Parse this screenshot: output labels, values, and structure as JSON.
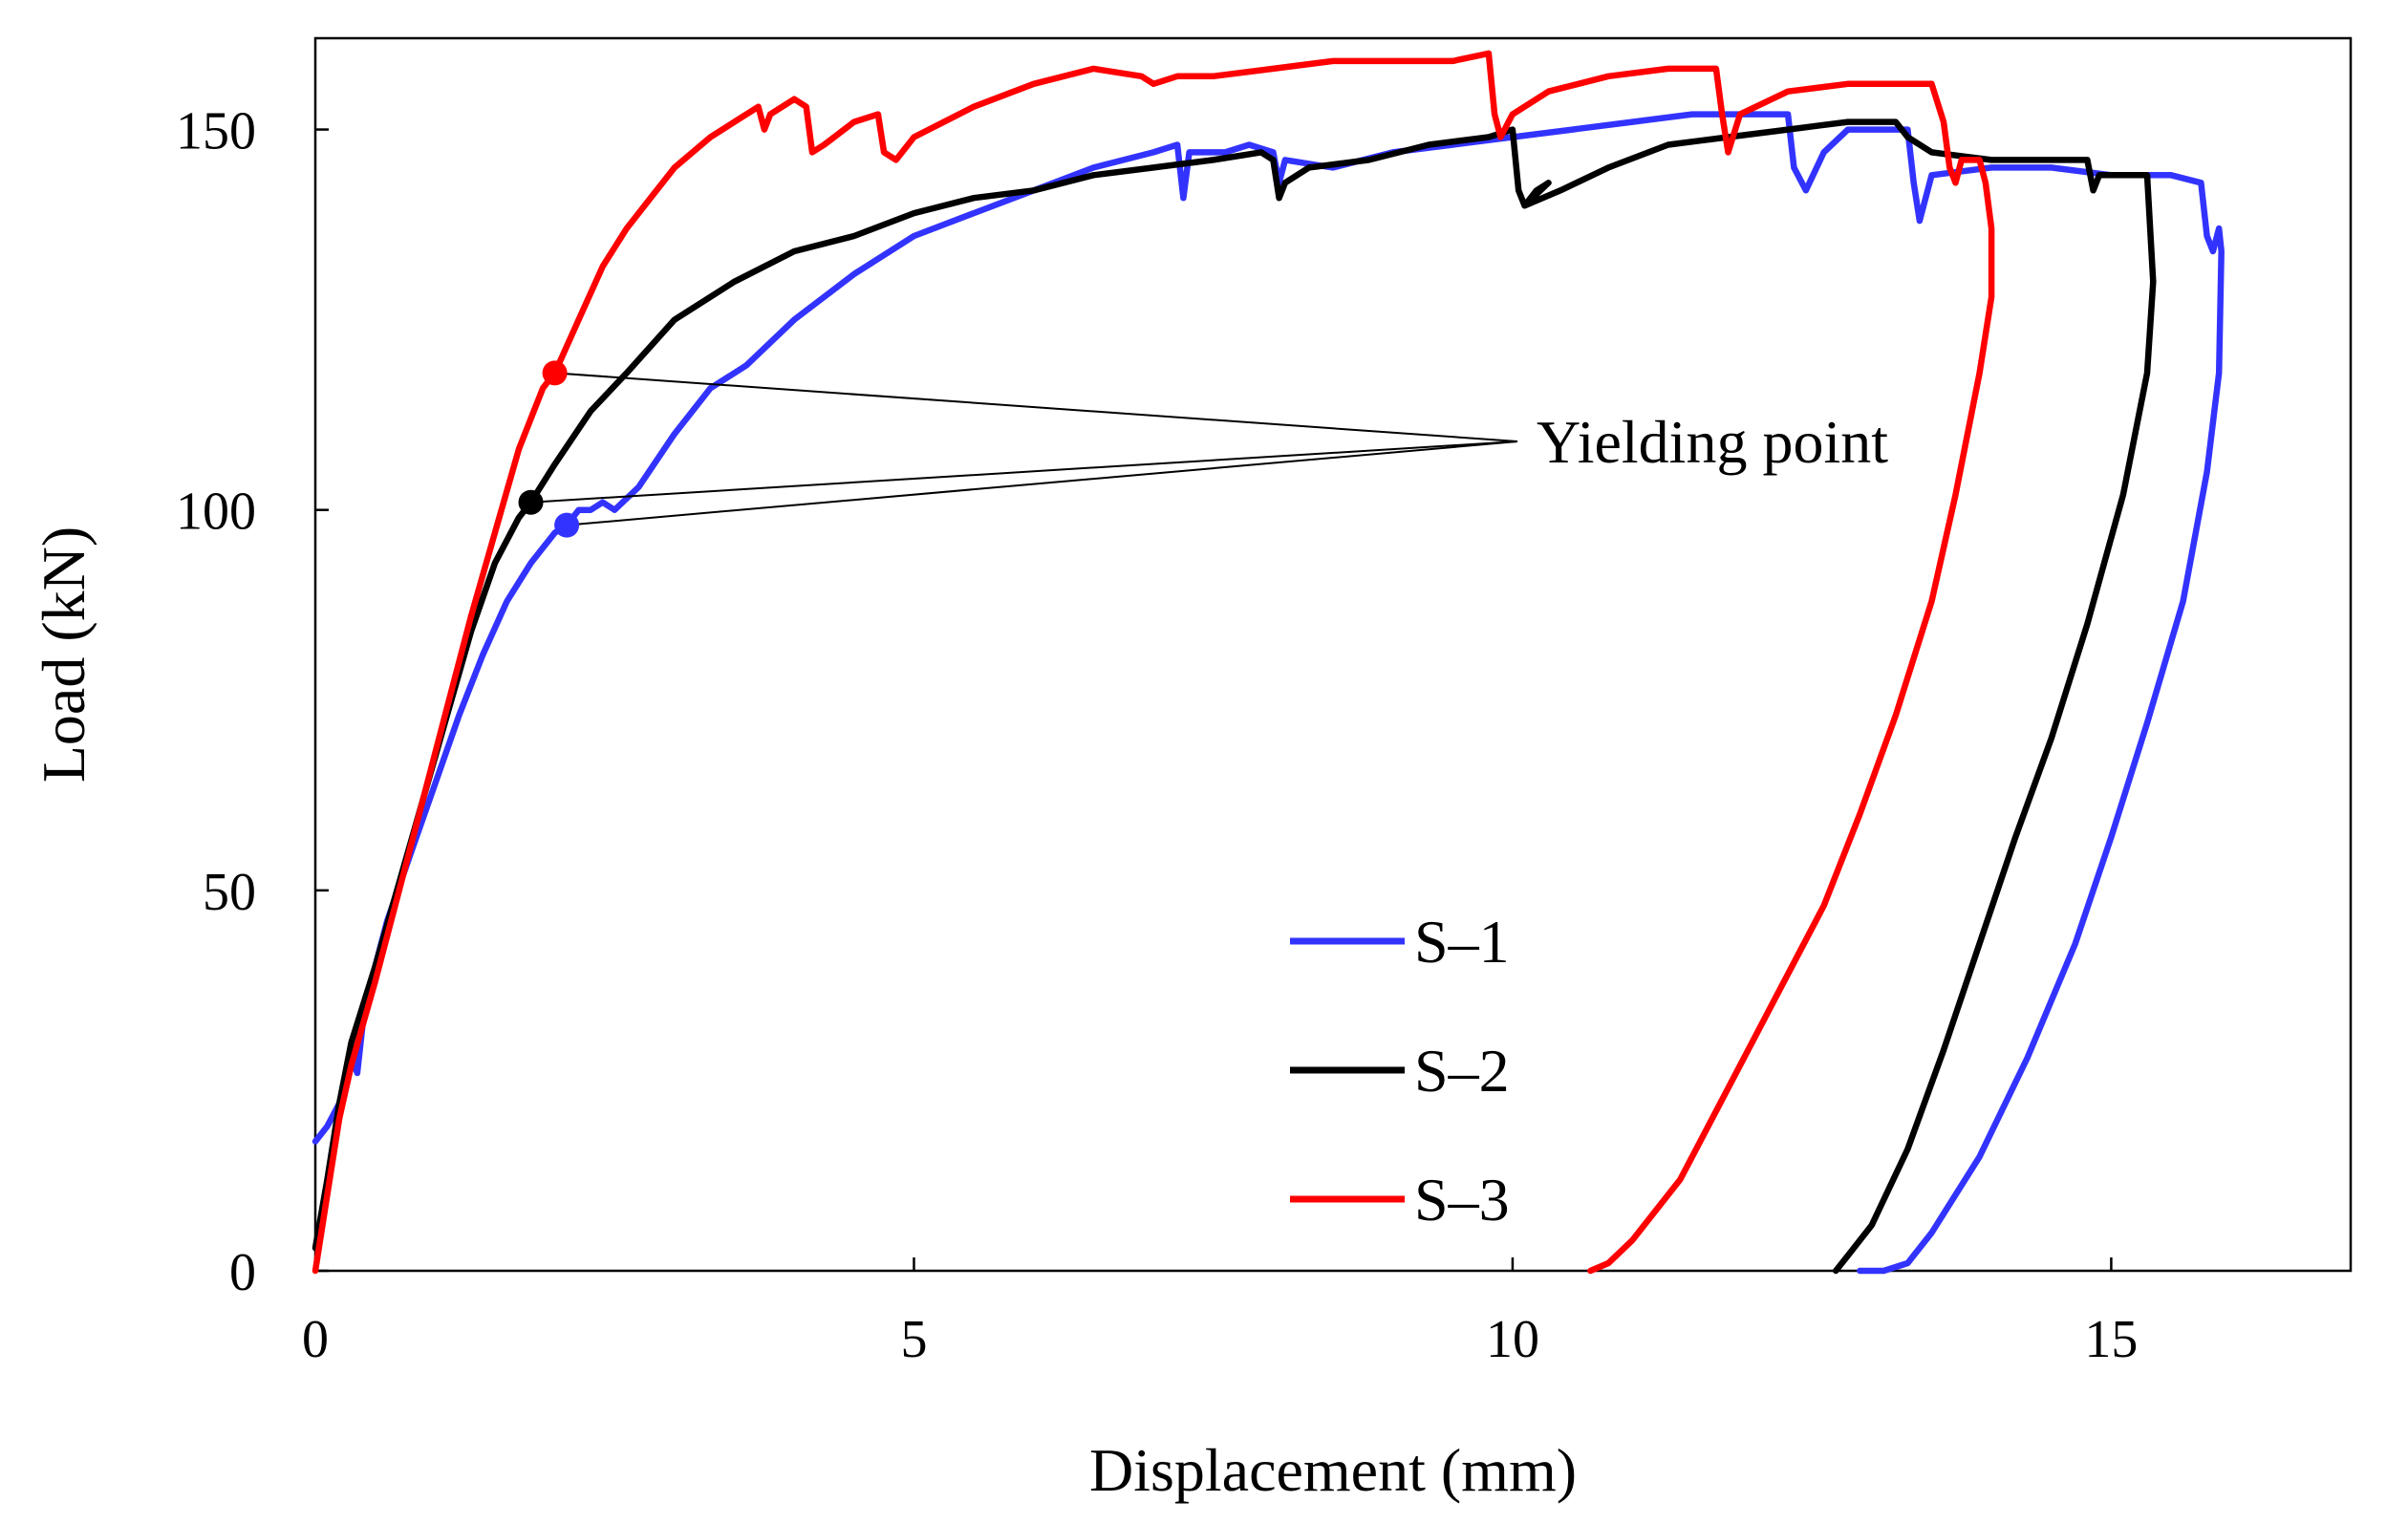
{
  "chart_data": {
    "type": "line",
    "title": "",
    "xlabel": "Displacement (mm)",
    "ylabel": "Load (kN)",
    "xlim": [
      0,
      17
    ],
    "ylim": [
      0,
      162
    ],
    "xticks": [
      0,
      5,
      10,
      15
    ],
    "yticks": [
      0,
      50,
      100,
      150
    ],
    "grid": false,
    "legend_position": "bottom-right",
    "annotation": {
      "text": "Yielding point",
      "anchor": [
        10.2,
        109
      ],
      "targets": [
        [
          2.0,
          118
        ],
        [
          1.8,
          101
        ],
        [
          2.1,
          98
        ]
      ]
    },
    "series": [
      {
        "name": "S–1",
        "color": "#3333ff",
        "yield_point": [
          2.1,
          98
        ],
        "points": [
          [
            0,
            17
          ],
          [
            0.1,
            19
          ],
          [
            0.2,
            22
          ],
          [
            0.3,
            28
          ],
          [
            0.35,
            26
          ],
          [
            0.4,
            33
          ],
          [
            0.5,
            40
          ],
          [
            0.6,
            46
          ],
          [
            0.8,
            55
          ],
          [
            1.0,
            64
          ],
          [
            1.2,
            73
          ],
          [
            1.4,
            81
          ],
          [
            1.6,
            88
          ],
          [
            1.8,
            93
          ],
          [
            2.0,
            97
          ],
          [
            2.1,
            98
          ],
          [
            2.2,
            100
          ],
          [
            2.3,
            100
          ],
          [
            2.4,
            101
          ],
          [
            2.5,
            100
          ],
          [
            2.7,
            103
          ],
          [
            3.0,
            110
          ],
          [
            3.3,
            116
          ],
          [
            3.6,
            119
          ],
          [
            4.0,
            125
          ],
          [
            4.5,
            131
          ],
          [
            5.0,
            136
          ],
          [
            5.5,
            139
          ],
          [
            6.0,
            142
          ],
          [
            6.5,
            145
          ],
          [
            7.0,
            147
          ],
          [
            7.2,
            148
          ],
          [
            7.25,
            141
          ],
          [
            7.3,
            147
          ],
          [
            7.6,
            147
          ],
          [
            7.8,
            148
          ],
          [
            8.0,
            147
          ],
          [
            8.05,
            143
          ],
          [
            8.1,
            146
          ],
          [
            8.5,
            145
          ],
          [
            9.0,
            147
          ],
          [
            9.5,
            148
          ],
          [
            10.0,
            149
          ],
          [
            10.5,
            150
          ],
          [
            11.0,
            151
          ],
          [
            11.5,
            152
          ],
          [
            12.0,
            152
          ],
          [
            12.3,
            152
          ],
          [
            12.35,
            145
          ],
          [
            12.45,
            142
          ],
          [
            12.6,
            147
          ],
          [
            12.8,
            150
          ],
          [
            13.0,
            150
          ],
          [
            13.3,
            150
          ],
          [
            13.35,
            143
          ],
          [
            13.4,
            138
          ],
          [
            13.5,
            144
          ],
          [
            14.0,
            145
          ],
          [
            14.5,
            145
          ],
          [
            15.0,
            144
          ],
          [
            15.5,
            144
          ],
          [
            15.75,
            143
          ],
          [
            15.8,
            136
          ],
          [
            15.85,
            134
          ],
          [
            15.9,
            137
          ],
          [
            15.92,
            134
          ],
          [
            15.9,
            118
          ],
          [
            15.8,
            105
          ],
          [
            15.6,
            88
          ],
          [
            15.3,
            72
          ],
          [
            15.0,
            57
          ],
          [
            14.7,
            43
          ],
          [
            14.3,
            28
          ],
          [
            13.9,
            15
          ],
          [
            13.5,
            5
          ],
          [
            13.3,
            1
          ],
          [
            13.1,
            0
          ],
          [
            12.9,
            0
          ]
        ]
      },
      {
        "name": "S–2",
        "color": "#000000",
        "yield_point": [
          1.8,
          101
        ],
        "points": [
          [
            0,
            3
          ],
          [
            0.1,
            12
          ],
          [
            0.2,
            22
          ],
          [
            0.3,
            30
          ],
          [
            0.5,
            40
          ],
          [
            0.7,
            51
          ],
          [
            0.9,
            62
          ],
          [
            1.1,
            73
          ],
          [
            1.3,
            84
          ],
          [
            1.5,
            93
          ],
          [
            1.7,
            99
          ],
          [
            1.8,
            101
          ],
          [
            2.0,
            106
          ],
          [
            2.3,
            113
          ],
          [
            2.6,
            118
          ],
          [
            3.0,
            125
          ],
          [
            3.5,
            130
          ],
          [
            4.0,
            134
          ],
          [
            4.5,
            136
          ],
          [
            5.0,
            139
          ],
          [
            5.5,
            141
          ],
          [
            6.0,
            142
          ],
          [
            6.5,
            144
          ],
          [
            7.0,
            145
          ],
          [
            7.5,
            146
          ],
          [
            7.9,
            147
          ],
          [
            8.0,
            146
          ],
          [
            8.05,
            141
          ],
          [
            8.1,
            143
          ],
          [
            8.3,
            145
          ],
          [
            8.8,
            146
          ],
          [
            9.3,
            148
          ],
          [
            9.8,
            149
          ],
          [
            10.0,
            150
          ],
          [
            10.05,
            142
          ],
          [
            10.1,
            140
          ],
          [
            10.2,
            142
          ],
          [
            10.3,
            143
          ],
          [
            10.1,
            140
          ],
          [
            10.4,
            142
          ],
          [
            10.8,
            145
          ],
          [
            11.3,
            148
          ],
          [
            11.8,
            149
          ],
          [
            12.3,
            150
          ],
          [
            12.8,
            151
          ],
          [
            13.2,
            151
          ],
          [
            13.3,
            149
          ],
          [
            13.5,
            147
          ],
          [
            14.0,
            146
          ],
          [
            14.5,
            146
          ],
          [
            14.8,
            146
          ],
          [
            14.85,
            142
          ],
          [
            14.9,
            144
          ],
          [
            15.3,
            144
          ],
          [
            15.35,
            130
          ],
          [
            15.3,
            118
          ],
          [
            15.1,
            102
          ],
          [
            14.8,
            85
          ],
          [
            14.5,
            70
          ],
          [
            14.2,
            57
          ],
          [
            13.9,
            43
          ],
          [
            13.6,
            29
          ],
          [
            13.3,
            16
          ],
          [
            13.0,
            6
          ],
          [
            12.8,
            2
          ],
          [
            12.7,
            0
          ]
        ]
      },
      {
        "name": "S–3",
        "color": "#ff0000",
        "yield_point": [
          2.0,
          118
        ],
        "points": [
          [
            0,
            0
          ],
          [
            0.1,
            10
          ],
          [
            0.2,
            20
          ],
          [
            0.3,
            27
          ],
          [
            0.5,
            38
          ],
          [
            0.7,
            50
          ],
          [
            0.9,
            62
          ],
          [
            1.1,
            74
          ],
          [
            1.3,
            86
          ],
          [
            1.5,
            97
          ],
          [
            1.7,
            108
          ],
          [
            1.9,
            116
          ],
          [
            2.0,
            118
          ],
          [
            2.2,
            125
          ],
          [
            2.4,
            132
          ],
          [
            2.6,
            137
          ],
          [
            2.8,
            141
          ],
          [
            3.0,
            145
          ],
          [
            3.3,
            149
          ],
          [
            3.6,
            152
          ],
          [
            3.7,
            153
          ],
          [
            3.75,
            150
          ],
          [
            3.8,
            152
          ],
          [
            4.0,
            154
          ],
          [
            4.1,
            153
          ],
          [
            4.15,
            147
          ],
          [
            4.25,
            148
          ],
          [
            4.5,
            151
          ],
          [
            4.7,
            152
          ],
          [
            4.75,
            147
          ],
          [
            4.85,
            146
          ],
          [
            5.0,
            149
          ],
          [
            5.5,
            153
          ],
          [
            6.0,
            156
          ],
          [
            6.5,
            158
          ],
          [
            6.9,
            157
          ],
          [
            7.0,
            156
          ],
          [
            7.2,
            157
          ],
          [
            7.5,
            157
          ],
          [
            8.0,
            158
          ],
          [
            8.5,
            159
          ],
          [
            9.0,
            159
          ],
          [
            9.5,
            159
          ],
          [
            9.8,
            160
          ],
          [
            9.85,
            152
          ],
          [
            9.9,
            149
          ],
          [
            10.0,
            152
          ],
          [
            10.3,
            155
          ],
          [
            10.8,
            157
          ],
          [
            11.3,
            158
          ],
          [
            11.7,
            158
          ],
          [
            11.75,
            152
          ],
          [
            11.8,
            147
          ],
          [
            11.9,
            152
          ],
          [
            12.3,
            155
          ],
          [
            12.8,
            156
          ],
          [
            13.2,
            156
          ],
          [
            13.5,
            156
          ],
          [
            13.6,
            151
          ],
          [
            13.65,
            145
          ],
          [
            13.7,
            143
          ],
          [
            13.75,
            146
          ],
          [
            13.9,
            146
          ],
          [
            13.95,
            143
          ],
          [
            14.0,
            137
          ],
          [
            14.0,
            128
          ],
          [
            13.9,
            118
          ],
          [
            13.7,
            102
          ],
          [
            13.5,
            88
          ],
          [
            13.2,
            73
          ],
          [
            12.9,
            60
          ],
          [
            12.6,
            48
          ],
          [
            12.2,
            36
          ],
          [
            11.8,
            24
          ],
          [
            11.4,
            12
          ],
          [
            11.0,
            4
          ],
          [
            10.8,
            1
          ],
          [
            10.65,
            0
          ]
        ]
      }
    ]
  }
}
